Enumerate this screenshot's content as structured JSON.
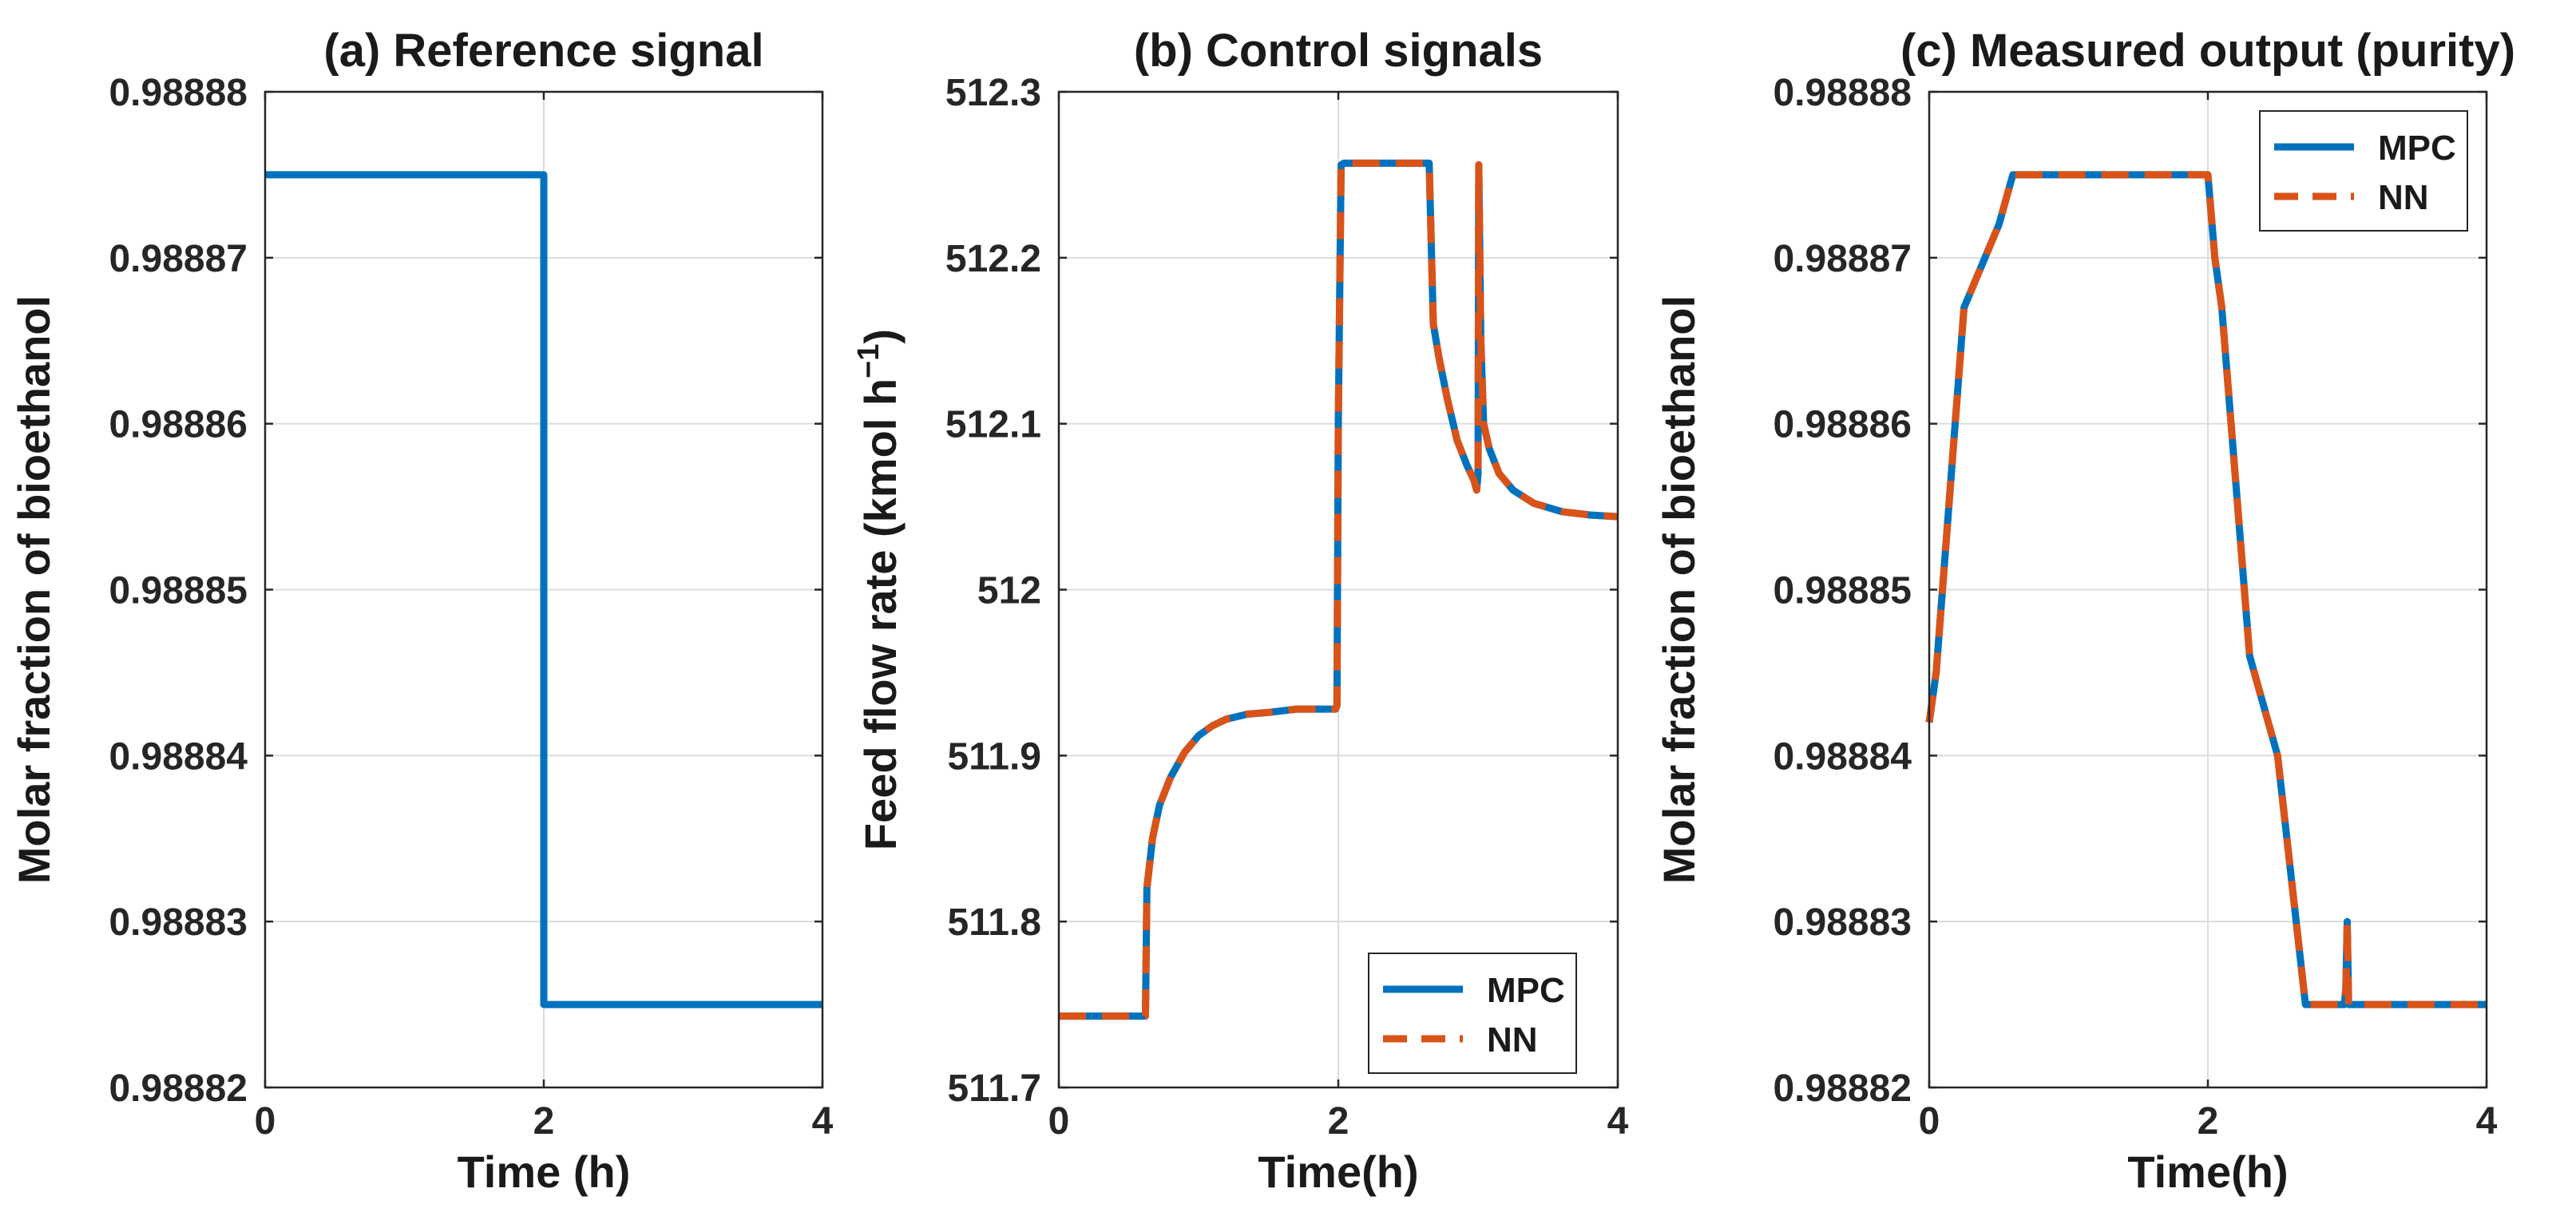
{
  "chart_data": [
    {
      "type": "line",
      "title": "(a) Reference signal",
      "xlabel": "Time (h)",
      "ylabel": "Molar fraction of bioethanol",
      "xlim": [
        0,
        4
      ],
      "ylim": [
        0.98882,
        0.98888
      ],
      "xticks": [
        0,
        2,
        4
      ],
      "xtick_labels": [
        "0",
        "2",
        "4"
      ],
      "yticks": [
        0.98882,
        0.98883,
        0.98884,
        0.98885,
        0.98886,
        0.98887,
        0.98888
      ],
      "ytick_labels": [
        "0.98882",
        "0.98883",
        "0.98884",
        "0.98885",
        "0.98886",
        "0.98887",
        "0.98888"
      ],
      "grid": true,
      "legend": null,
      "series": [
        {
          "name": "Reference",
          "color": "#0072BD",
          "dash": "solid",
          "x": [
            0,
            2,
            2,
            4
          ],
          "y": [
            0.988875,
            0.988875,
            0.988825,
            0.988825
          ]
        }
      ]
    },
    {
      "type": "line",
      "title": "(b) Control signals",
      "xlabel": "Time(h)",
      "ylabel": "Feed flow rate (kmol h",
      "ylabel_sup": "−1",
      "ylabel_end": ")",
      "xlim": [
        0,
        4
      ],
      "ylim": [
        511.7,
        512.3
      ],
      "xticks": [
        0,
        2,
        4
      ],
      "xtick_labels": [
        "0",
        "2",
        "4"
      ],
      "yticks": [
        511.7,
        511.8,
        511.9,
        512.0,
        512.1,
        512.2,
        512.3
      ],
      "ytick_labels": [
        "511.7",
        "511.8",
        "511.9",
        "512",
        "512.1",
        "512.2",
        "512.3"
      ],
      "grid": true,
      "legend": {
        "position": "bottom-right",
        "entries": [
          "MPC",
          "NN"
        ]
      },
      "series": [
        {
          "name": "MPC",
          "color": "#0072BD",
          "dash": "solid",
          "x": [
            0,
            0.62,
            0.63,
            0.67,
            0.72,
            0.8,
            0.9,
            1.0,
            1.1,
            1.2,
            1.35,
            1.5,
            1.7,
            1.98,
            1.99,
            2.0,
            2.02,
            2.04,
            2.2,
            2.4,
            2.65,
            2.68,
            2.72,
            2.78,
            2.85,
            2.92,
            2.97,
            2.99,
            3.0,
            3.005,
            3.02,
            3.04,
            3.08,
            3.15,
            3.25,
            3.4,
            3.6,
            3.8,
            4.0
          ],
          "y": [
            511.743,
            511.743,
            511.82,
            511.85,
            511.87,
            511.887,
            511.902,
            511.912,
            511.918,
            511.922,
            511.925,
            511.926,
            511.928,
            511.928,
            511.93,
            512.1,
            512.256,
            512.257,
            512.257,
            512.257,
            512.257,
            512.16,
            512.14,
            512.115,
            512.09,
            512.075,
            512.066,
            512.06,
            512.07,
            512.256,
            512.15,
            512.1,
            512.085,
            512.07,
            512.06,
            512.052,
            512.047,
            512.045,
            512.044
          ]
        },
        {
          "name": "NN",
          "color": "#D95319",
          "dash": "dashed",
          "x": [
            0,
            0.62,
            0.63,
            0.67,
            0.72,
            0.8,
            0.9,
            1.0,
            1.1,
            1.2,
            1.35,
            1.5,
            1.7,
            1.98,
            1.99,
            2.0,
            2.02,
            2.04,
            2.2,
            2.4,
            2.65,
            2.68,
            2.72,
            2.78,
            2.85,
            2.92,
            2.97,
            2.99,
            3.0,
            3.005,
            3.02,
            3.04,
            3.08,
            3.15,
            3.25,
            3.4,
            3.6,
            3.8,
            4.0
          ],
          "y": [
            511.743,
            511.743,
            511.82,
            511.85,
            511.87,
            511.887,
            511.902,
            511.912,
            511.918,
            511.922,
            511.925,
            511.926,
            511.928,
            511.928,
            511.93,
            512.1,
            512.256,
            512.257,
            512.257,
            512.257,
            512.257,
            512.16,
            512.14,
            512.115,
            512.09,
            512.075,
            512.066,
            512.06,
            512.07,
            512.256,
            512.15,
            512.1,
            512.085,
            512.07,
            512.06,
            512.052,
            512.047,
            512.045,
            512.044
          ]
        }
      ]
    },
    {
      "type": "line",
      "title": "(c) Measured output (purity)",
      "xlabel": "Time(h)",
      "ylabel": "Molar fraction of bioethanol",
      "xlim": [
        0,
        4
      ],
      "ylim": [
        0.98882,
        0.98888
      ],
      "xticks": [
        0,
        2,
        4
      ],
      "xtick_labels": [
        "0",
        "2",
        "4"
      ],
      "yticks": [
        0.98882,
        0.98883,
        0.98884,
        0.98885,
        0.98886,
        0.98887,
        0.98888
      ],
      "ytick_labels": [
        "0.98882",
        "0.98883",
        "0.98884",
        "0.98885",
        "0.98886",
        "0.98887",
        "0.98888"
      ],
      "grid": true,
      "legend": {
        "position": "top-right",
        "entries": [
          "MPC",
          "NN"
        ]
      },
      "series": [
        {
          "name": "MPC",
          "color": "#0072BD",
          "dash": "solid",
          "x": [
            0,
            0.05,
            0.25,
            0.5,
            0.6,
            1.0,
            1.5,
            2.0,
            2.05,
            2.1,
            2.3,
            2.5,
            2.7,
            2.8,
            2.98,
            2.99,
            3.0,
            3.01,
            3.02,
            3.2,
            3.5,
            4.0
          ],
          "y": [
            0.988842,
            0.988845,
            0.988867,
            0.988872,
            0.988875,
            0.988875,
            0.988875,
            0.988875,
            0.98887,
            0.988867,
            0.988846,
            0.98884,
            0.988825,
            0.988825,
            0.988825,
            0.988826,
            0.98883,
            0.988825,
            0.988825,
            0.988825,
            0.988825,
            0.988825
          ]
        },
        {
          "name": "NN",
          "color": "#D95319",
          "dash": "dashed",
          "x": [
            0,
            0.05,
            0.25,
            0.5,
            0.6,
            1.0,
            1.5,
            2.0,
            2.05,
            2.1,
            2.3,
            2.5,
            2.7,
            2.8,
            2.98,
            2.99,
            3.0,
            3.01,
            3.02,
            3.2,
            3.5,
            4.0
          ],
          "y": [
            0.988842,
            0.988845,
            0.988867,
            0.988872,
            0.988875,
            0.988875,
            0.988875,
            0.988875,
            0.98887,
            0.988867,
            0.988846,
            0.98884,
            0.988825,
            0.988825,
            0.988825,
            0.988826,
            0.98883,
            0.988825,
            0.988825,
            0.988825,
            0.988825,
            0.988825
          ]
        }
      ]
    }
  ]
}
